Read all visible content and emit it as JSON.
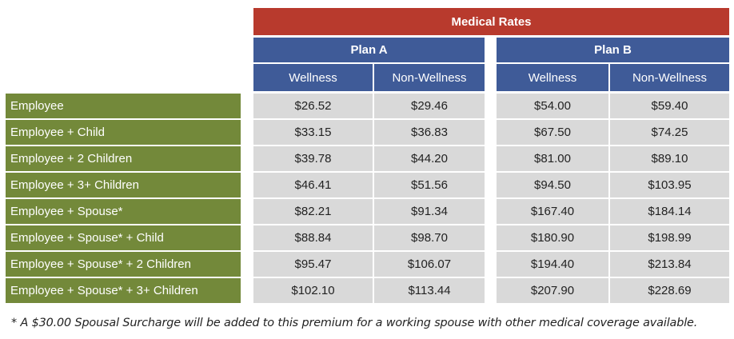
{
  "table": {
    "title": "Medical Rates",
    "plans": [
      {
        "name": "Plan A",
        "columns": [
          "Wellness",
          "Non-Wellness"
        ]
      },
      {
        "name": "Plan B",
        "columns": [
          "Wellness",
          "Non-Wellness"
        ]
      }
    ],
    "rows": [
      {
        "label": "Employee",
        "values": [
          "$26.52",
          "$29.46",
          "$54.00",
          "$59.40"
        ]
      },
      {
        "label": "Employee + Child",
        "values": [
          "$33.15",
          "$36.83",
          "$67.50",
          "$74.25"
        ]
      },
      {
        "label": "Employee + 2 Children",
        "values": [
          "$39.78",
          "$44.20",
          "$81.00",
          "$89.10"
        ]
      },
      {
        "label": "Employee + 3+ Children",
        "values": [
          "$46.41",
          "$51.56",
          "$94.50",
          "$103.95"
        ]
      },
      {
        "label": "Employee + Spouse*",
        "values": [
          "$82.21",
          "$91.34",
          "$167.40",
          "$184.14"
        ]
      },
      {
        "label": "Employee + Spouse* + Child",
        "values": [
          "$88.84",
          "$98.70",
          "$180.90",
          "$198.99"
        ]
      },
      {
        "label": "Employee + Spouse* + 2 Children",
        "values": [
          "$95.47",
          "$106.07",
          "$194.40",
          "$213.84"
        ]
      },
      {
        "label": "Employee + Spouse* + 3+ Children",
        "values": [
          "$102.10",
          "$113.44",
          "$207.90",
          "$228.69"
        ]
      }
    ],
    "footnote": "* A $30.00 Spousal Surcharge will be added to this premium for a working spouse with other medical coverage available."
  },
  "colors": {
    "title_bg": "#b83a2d",
    "header_bg": "#3f5b98",
    "row_label_bg": "#73893a",
    "value_bg": "#d9d9d9"
  }
}
